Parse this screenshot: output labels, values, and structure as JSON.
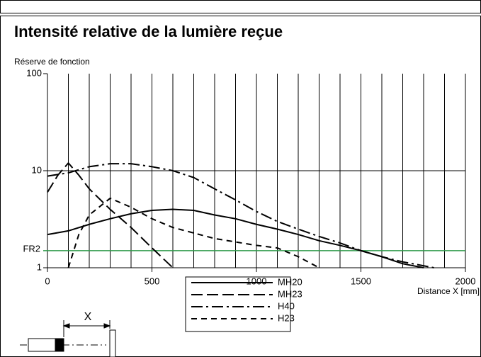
{
  "chart_data": {
    "type": "line",
    "title": "Intensité relative de la lumière reçue",
    "y_axis_label": "Réserve de fonction",
    "x_axis_label": "Distance X [mm]",
    "log_y": true,
    "grid": true,
    "xlim": [
      0,
      2000
    ],
    "xticks": [
      0,
      500,
      1000,
      1500,
      2000
    ],
    "x_minor_ticks": [
      100,
      200,
      300,
      400,
      600,
      700,
      800,
      900,
      1100,
      1200,
      1300,
      1400,
      1600,
      1700,
      1800,
      1900
    ],
    "ylim": [
      1,
      100
    ],
    "yticks": [
      1,
      10,
      100
    ],
    "reference_line": {
      "label": "FR2",
      "value": 1.5,
      "color": "#2e9a4a"
    },
    "diagram_label": "X",
    "series": [
      {
        "name": "MH20",
        "color": "#000000",
        "line_style": "solid",
        "x": [
          0,
          100,
          200,
          300,
          400,
          500,
          600,
          700,
          800,
          900,
          1000,
          1100,
          1200,
          1300,
          1400,
          1500,
          1600,
          1700,
          1800
        ],
        "values": [
          2.2,
          2.4,
          2.8,
          3.2,
          3.6,
          3.9,
          4.0,
          3.9,
          3.5,
          3.2,
          2.8,
          2.5,
          2.2,
          1.9,
          1.7,
          1.5,
          1.3,
          1.1,
          1.0
        ]
      },
      {
        "name": "MH23",
        "color": "#000000",
        "line_style": "dashed",
        "x": [
          0,
          50,
          100,
          150,
          200,
          300,
          400,
          500,
          600
        ],
        "values": [
          6,
          9,
          12,
          9,
          6.5,
          4,
          2.6,
          1.6,
          1.0
        ]
      },
      {
        "name": "H40",
        "color": "#000000",
        "line_style": "dashdot",
        "x": [
          0,
          100,
          200,
          300,
          400,
          500,
          600,
          700,
          800,
          900,
          1000,
          1100,
          1200,
          1300,
          1400,
          1500,
          1600,
          1700,
          1850
        ],
        "values": [
          8.8,
          9.5,
          11,
          11.8,
          11.8,
          11,
          10,
          8.5,
          6.5,
          5,
          3.8,
          3,
          2.5,
          2.1,
          1.8,
          1.5,
          1.3,
          1.15,
          1.0
        ]
      },
      {
        "name": "H23",
        "color": "#000000",
        "line_style": "shortdash",
        "x": [
          100,
          150,
          200,
          300,
          400,
          500,
          600,
          800,
          1000,
          1100,
          1200,
          1300
        ],
        "values": [
          1,
          2.2,
          3.5,
          5.2,
          4.2,
          3.2,
          2.6,
          2.0,
          1.7,
          1.6,
          1.3,
          1.0
        ]
      }
    ]
  }
}
